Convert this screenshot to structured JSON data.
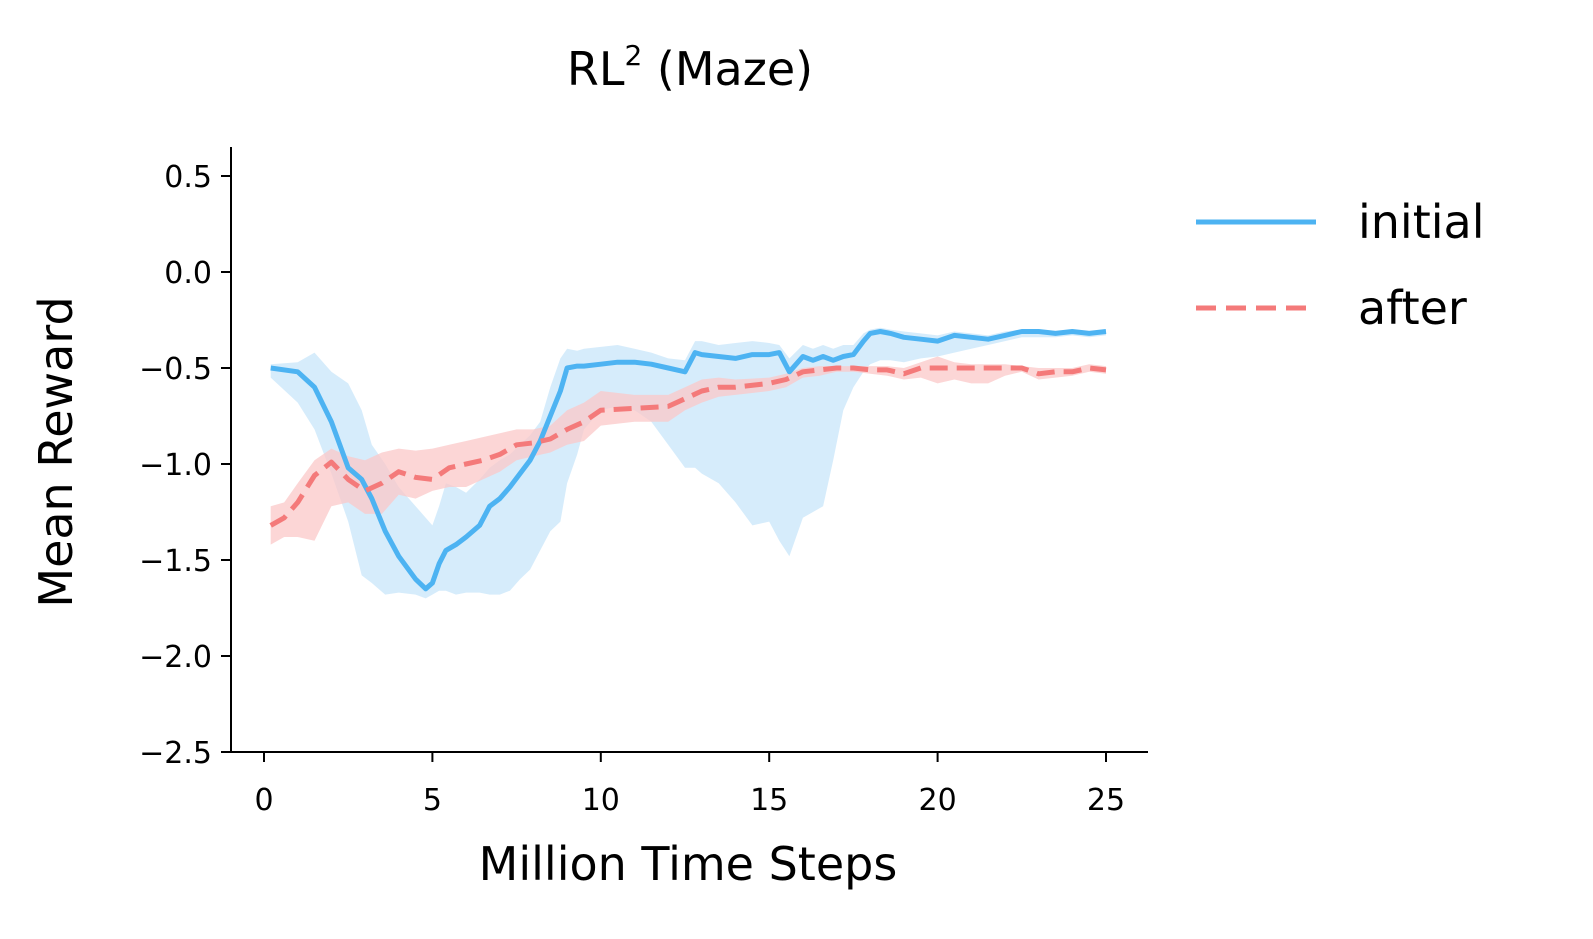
{
  "chart_data": {
    "type": "line",
    "title": "RL",
    "title_superscript": "2",
    "title_suffix": " (Maze)",
    "xlabel": "Million Time Steps",
    "ylabel": "Mean Reward",
    "xlim": [
      -1,
      26.2
    ],
    "ylim": [
      -2.5,
      0.65
    ],
    "xticks": [
      0,
      5,
      10,
      15,
      20,
      25
    ],
    "yticks": [
      0.5,
      0.0,
      -0.5,
      -1.0,
      -1.5,
      -2.0,
      -2.5
    ],
    "xtick_labels": [
      "0",
      "5",
      "10",
      "15",
      "20",
      "25"
    ],
    "ytick_labels": [
      "0.5",
      "0.0",
      "−0.5",
      "−1.0",
      "−1.5",
      "−2.0",
      "−2.5"
    ],
    "grid": false,
    "legend_position": "outside-right-top",
    "series": [
      {
        "name": "initial",
        "color": "#4db3f2",
        "band_color": "#c8e6f9",
        "dash": "solid",
        "x": [
          0.2,
          1.0,
          1.5,
          2.0,
          2.5,
          2.9,
          3.2,
          3.6,
          4.0,
          4.5,
          4.8,
          5.0,
          5.2,
          5.4,
          5.7,
          6.0,
          6.4,
          6.7,
          7.0,
          7.3,
          7.6,
          7.9,
          8.2,
          8.5,
          8.8,
          9.0,
          9.3,
          9.5,
          10.0,
          10.5,
          11.0,
          11.5,
          12.0,
          12.5,
          12.8,
          13.0,
          13.5,
          14.0,
          14.5,
          15.0,
          15.3,
          15.6,
          16.0,
          16.3,
          16.6,
          16.9,
          17.2,
          17.5,
          17.8,
          18.0,
          18.3,
          18.6,
          19.0,
          19.5,
          20.0,
          20.5,
          21.0,
          21.5,
          22.0,
          22.5,
          23.0,
          23.5,
          24.0,
          24.5,
          25.0
        ],
        "values": [
          -0.5,
          -0.52,
          -0.6,
          -0.78,
          -1.02,
          -1.08,
          -1.18,
          -1.35,
          -1.48,
          -1.6,
          -1.65,
          -1.62,
          -1.52,
          -1.45,
          -1.42,
          -1.38,
          -1.32,
          -1.22,
          -1.18,
          -1.12,
          -1.05,
          -0.98,
          -0.88,
          -0.75,
          -0.62,
          -0.5,
          -0.49,
          -0.49,
          -0.48,
          -0.47,
          -0.47,
          -0.48,
          -0.5,
          -0.52,
          -0.42,
          -0.43,
          -0.44,
          -0.45,
          -0.43,
          -0.43,
          -0.42,
          -0.52,
          -0.44,
          -0.46,
          -0.44,
          -0.46,
          -0.44,
          -0.43,
          -0.36,
          -0.32,
          -0.31,
          -0.32,
          -0.34,
          -0.35,
          -0.36,
          -0.33,
          -0.34,
          -0.35,
          -0.33,
          -0.31,
          -0.31,
          -0.32,
          -0.31,
          -0.32,
          -0.31
        ],
        "band_upper": [
          -0.48,
          -0.47,
          -0.42,
          -0.52,
          -0.58,
          -0.72,
          -0.9,
          -1.0,
          -1.12,
          -1.22,
          -1.28,
          -1.32,
          -1.22,
          -1.1,
          -1.12,
          -1.15,
          -1.08,
          -1.02,
          -0.98,
          -0.95,
          -0.9,
          -0.85,
          -0.78,
          -0.6,
          -0.45,
          -0.4,
          -0.41,
          -0.4,
          -0.39,
          -0.38,
          -0.4,
          -0.42,
          -0.45,
          -0.46,
          -0.36,
          -0.36,
          -0.38,
          -0.37,
          -0.36,
          -0.37,
          -0.38,
          -0.45,
          -0.38,
          -0.4,
          -0.38,
          -0.4,
          -0.38,
          -0.38,
          -0.32,
          -0.3,
          -0.29,
          -0.3,
          -0.31,
          -0.32,
          -0.33,
          -0.31,
          -0.32,
          -0.33,
          -0.31,
          -0.3,
          -0.3,
          -0.31,
          -0.3,
          -0.31,
          -0.3
        ],
        "band_lower": [
          -0.55,
          -0.68,
          -0.82,
          -1.05,
          -1.3,
          -1.58,
          -1.62,
          -1.68,
          -1.67,
          -1.68,
          -1.7,
          -1.68,
          -1.66,
          -1.66,
          -1.68,
          -1.67,
          -1.67,
          -1.68,
          -1.68,
          -1.66,
          -1.6,
          -1.55,
          -1.45,
          -1.35,
          -1.3,
          -1.1,
          -0.95,
          -0.82,
          -0.72,
          -0.7,
          -0.72,
          -0.78,
          -0.9,
          -1.02,
          -1.02,
          -1.05,
          -1.1,
          -1.2,
          -1.32,
          -1.3,
          -1.4,
          -1.48,
          -1.28,
          -1.25,
          -1.22,
          -0.98,
          -0.72,
          -0.6,
          -0.52,
          -0.48,
          -0.46,
          -0.46,
          -0.47,
          -0.45,
          -0.44,
          -0.42,
          -0.4,
          -0.38,
          -0.36,
          -0.34,
          -0.34,
          -0.34,
          -0.33,
          -0.34,
          -0.33
        ]
      },
      {
        "name": "after",
        "color": "#f47a7a",
        "band_color": "#fbc8c8",
        "dash": "dashed",
        "x": [
          0.2,
          0.6,
          1.0,
          1.5,
          2.0,
          2.5,
          3.0,
          3.5,
          4.0,
          4.5,
          5.0,
          5.5,
          6.0,
          6.5,
          7.0,
          7.5,
          8.0,
          8.5,
          9.0,
          9.5,
          10.0,
          11.0,
          12.0,
          12.5,
          13.0,
          13.5,
          14.0,
          15.0,
          15.5,
          16.0,
          16.5,
          17.0,
          17.5,
          18.0,
          18.5,
          19.0,
          19.5,
          20.0,
          20.5,
          21.0,
          21.5,
          22.0,
          22.5,
          23.0,
          23.5,
          24.0,
          24.5,
          25.0
        ],
        "values": [
          -1.32,
          -1.28,
          -1.2,
          -1.06,
          -0.99,
          -1.08,
          -1.14,
          -1.1,
          -1.04,
          -1.07,
          -1.08,
          -1.02,
          -1.0,
          -0.98,
          -0.95,
          -0.9,
          -0.89,
          -0.87,
          -0.82,
          -0.78,
          -0.72,
          -0.71,
          -0.7,
          -0.66,
          -0.62,
          -0.6,
          -0.6,
          -0.58,
          -0.56,
          -0.52,
          -0.51,
          -0.5,
          -0.5,
          -0.51,
          -0.51,
          -0.53,
          -0.5,
          -0.5,
          -0.5,
          -0.5,
          -0.5,
          -0.5,
          -0.5,
          -0.53,
          -0.52,
          -0.52,
          -0.5,
          -0.51
        ],
        "band_upper": [
          -1.22,
          -1.2,
          -1.1,
          -0.98,
          -0.92,
          -0.96,
          -0.98,
          -0.94,
          -0.92,
          -0.93,
          -0.92,
          -0.9,
          -0.88,
          -0.86,
          -0.84,
          -0.82,
          -0.82,
          -0.8,
          -0.72,
          -0.68,
          -0.62,
          -0.64,
          -0.64,
          -0.6,
          -0.56,
          -0.55,
          -0.56,
          -0.55,
          -0.53,
          -0.5,
          -0.49,
          -0.49,
          -0.49,
          -0.49,
          -0.49,
          -0.5,
          -0.47,
          -0.44,
          -0.47,
          -0.48,
          -0.48,
          -0.48,
          -0.49,
          -0.5,
          -0.5,
          -0.5,
          -0.48,
          -0.49
        ],
        "band_lower": [
          -1.42,
          -1.38,
          -1.38,
          -1.4,
          -1.22,
          -1.2,
          -1.26,
          -1.26,
          -1.16,
          -1.18,
          -1.14,
          -1.12,
          -1.12,
          -1.08,
          -1.04,
          -0.98,
          -0.96,
          -0.94,
          -0.9,
          -0.88,
          -0.8,
          -0.78,
          -0.78,
          -0.72,
          -0.68,
          -0.65,
          -0.64,
          -0.62,
          -0.6,
          -0.55,
          -0.54,
          -0.52,
          -0.52,
          -0.53,
          -0.54,
          -0.56,
          -0.55,
          -0.58,
          -0.56,
          -0.58,
          -0.58,
          -0.54,
          -0.52,
          -0.56,
          -0.55,
          -0.54,
          -0.52,
          -0.53
        ]
      }
    ]
  }
}
